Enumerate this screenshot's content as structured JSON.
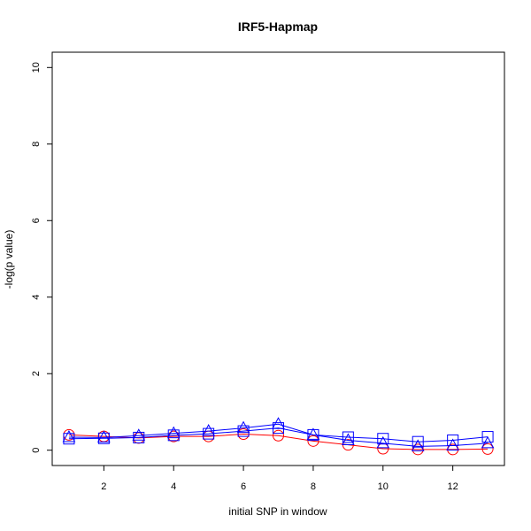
{
  "chart_data": {
    "type": "line",
    "title": "IRF5-Hapmap",
    "xlabel": "initial SNP in window",
    "ylabel": "-log(p value)",
    "xlim": [
      0.52,
      13.48
    ],
    "ylim": [
      -0.4,
      10.4
    ],
    "x_ticks": [
      2,
      4,
      6,
      8,
      10,
      12
    ],
    "y_ticks": [
      0,
      2,
      4,
      6,
      8,
      10
    ],
    "grid": false,
    "x": [
      1,
      2,
      3,
      4,
      5,
      6,
      7,
      8,
      9,
      10,
      11,
      12,
      13
    ],
    "series": [
      {
        "marker": "circle",
        "color": "#ff0000",
        "values": [
          0.4,
          0.36,
          0.32,
          0.36,
          0.36,
          0.42,
          0.38,
          0.24,
          0.14,
          0.04,
          0.02,
          0.02,
          0.03
        ]
      },
      {
        "marker": "triangle",
        "color": "#0000ff",
        "values": [
          0.34,
          0.33,
          0.38,
          0.44,
          0.5,
          0.58,
          0.68,
          0.4,
          0.26,
          0.18,
          0.1,
          0.12,
          0.18
        ]
      },
      {
        "marker": "square",
        "color": "#0000ff",
        "values": [
          0.3,
          0.31,
          0.33,
          0.39,
          0.43,
          0.5,
          0.58,
          0.4,
          0.34,
          0.3,
          0.22,
          0.26,
          0.35
        ]
      }
    ]
  }
}
